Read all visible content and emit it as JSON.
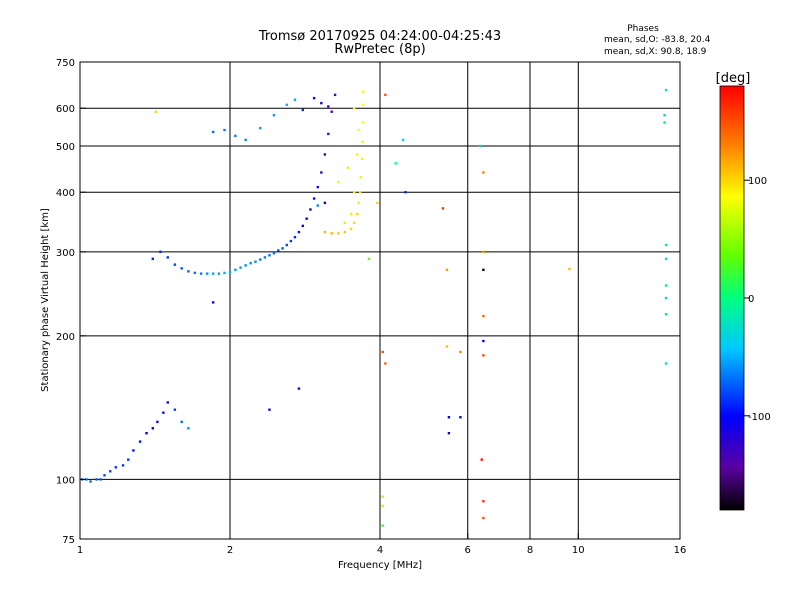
{
  "chart_data": {
    "type": "scatter",
    "title": "Tromsø 20170925 04:24:00-04:25:43",
    "subtitle": "RwPretec (8p)",
    "xlabel": "Frequency [MHz]",
    "ylabel": "Stationary phase Virtual Height [km]",
    "x_scale": "log",
    "y_scale": "log",
    "xlim": [
      1,
      16
    ],
    "ylim": [
      75,
      750
    ],
    "x_ticks": [
      1,
      2,
      4,
      6,
      8,
      10,
      16
    ],
    "x_tick_labels": [
      "1",
      "2",
      "4",
      "6",
      "8",
      "10",
      "16"
    ],
    "x_grid": [
      2,
      4,
      6,
      8,
      10
    ],
    "y_ticks": [
      75,
      100,
      200,
      300,
      400,
      500,
      600,
      750
    ],
    "y_tick_labels": [
      "75",
      "100",
      "200",
      "300",
      "400",
      "500",
      "600",
      "750"
    ],
    "y_grid": [
      100,
      200,
      300,
      400,
      500,
      600
    ],
    "grid": true,
    "legend": {
      "title": "Phases",
      "lines": [
        "mean, sd,O: -83.8, 20.4",
        "mean, sd,X:  90.8, 18.9"
      ]
    },
    "colorbar": {
      "label": "[deg]",
      "range": [
        -180,
        180
      ],
      "ticks": [
        100,
        0,
        -100
      ],
      "tick_labels": [
        "100",
        "0",
        "-100"
      ]
    },
    "series": [
      {
        "points": [
          [
            1.01,
            100,
            -70
          ],
          [
            1.03,
            100,
            -70
          ],
          [
            1.05,
            99,
            -70
          ],
          [
            1.08,
            100,
            -75
          ],
          [
            1.1,
            100,
            -75
          ],
          [
            1.12,
            102,
            -80
          ],
          [
            1.15,
            104,
            -80
          ],
          [
            1.18,
            106,
            -85
          ],
          [
            1.22,
            107,
            -85
          ],
          [
            1.25,
            110,
            -85
          ],
          [
            1.28,
            115,
            -95
          ],
          [
            1.32,
            120,
            -95
          ],
          [
            1.36,
            125,
            -100
          ],
          [
            1.4,
            128,
            -100
          ],
          [
            1.43,
            132,
            -105
          ],
          [
            1.47,
            138,
            -110
          ],
          [
            1.5,
            145,
            -115
          ],
          [
            1.55,
            140,
            -80
          ],
          [
            1.6,
            132,
            -70
          ],
          [
            1.65,
            128,
            -60
          ]
        ]
      },
      {
        "points": [
          [
            1.4,
            290,
            -90
          ],
          [
            1.45,
            300,
            -90
          ],
          [
            1.5,
            292,
            -85
          ],
          [
            1.55,
            282,
            -80
          ],
          [
            1.6,
            277,
            -75
          ],
          [
            1.65,
            273,
            -70
          ],
          [
            1.7,
            271,
            -70
          ],
          [
            1.75,
            270,
            -65
          ],
          [
            1.8,
            270,
            -60
          ],
          [
            1.85,
            270,
            -55
          ],
          [
            1.9,
            270,
            -55
          ],
          [
            1.95,
            271,
            -50
          ],
          [
            2.0,
            272,
            -50
          ],
          [
            2.05,
            275,
            -55
          ],
          [
            2.1,
            278,
            -55
          ],
          [
            2.15,
            281,
            -60
          ],
          [
            2.2,
            284,
            -60
          ],
          [
            2.25,
            286,
            -60
          ],
          [
            2.3,
            289,
            -65
          ],
          [
            2.35,
            292,
            -65
          ],
          [
            2.4,
            295,
            -70
          ],
          [
            2.45,
            298,
            -70
          ],
          [
            2.5,
            302,
            -75
          ],
          [
            2.55,
            305,
            -75
          ],
          [
            2.6,
            310,
            -80
          ],
          [
            2.65,
            316,
            -85
          ],
          [
            2.7,
            322,
            -90
          ],
          [
            2.75,
            330,
            -95
          ],
          [
            2.8,
            340,
            -100
          ],
          [
            2.85,
            352,
            -105
          ],
          [
            2.9,
            368,
            -110
          ],
          [
            2.95,
            388,
            -115
          ],
          [
            3.0,
            410,
            -120
          ],
          [
            3.05,
            440,
            -125
          ],
          [
            3.1,
            480,
            -130
          ],
          [
            3.15,
            530,
            -135
          ],
          [
            3.2,
            590,
            -140
          ],
          [
            3.25,
            640,
            -140
          ],
          [
            1.85,
            535,
            -70
          ],
          [
            1.95,
            540,
            -65
          ],
          [
            2.05,
            525,
            -65
          ],
          [
            2.15,
            515,
            -60
          ],
          [
            2.3,
            545,
            -55
          ],
          [
            2.45,
            580,
            -55
          ],
          [
            2.6,
            610,
            -50
          ],
          [
            2.7,
            625,
            -50
          ],
          [
            2.8,
            595,
            -90
          ],
          [
            2.95,
            630,
            -110
          ],
          [
            3.05,
            615,
            -120
          ],
          [
            3.15,
            605,
            -130
          ]
        ]
      },
      {
        "points": [
          [
            3.1,
            330,
            110
          ],
          [
            3.2,
            328,
            110
          ],
          [
            3.3,
            328,
            105
          ],
          [
            3.4,
            330,
            105
          ],
          [
            3.5,
            335,
            100
          ],
          [
            3.55,
            345,
            100
          ],
          [
            3.6,
            360,
            100
          ],
          [
            3.62,
            380,
            95
          ],
          [
            3.65,
            400,
            95
          ],
          [
            3.66,
            430,
            90
          ],
          [
            3.68,
            470,
            90
          ],
          [
            3.69,
            510,
            90
          ],
          [
            3.7,
            560,
            85
          ],
          [
            3.7,
            610,
            85
          ],
          [
            3.7,
            650,
            80
          ],
          [
            3.4,
            345,
            95
          ],
          [
            3.5,
            360,
            95
          ],
          [
            3.55,
            400,
            90
          ],
          [
            3.6,
            480,
            90
          ],
          [
            3.62,
            540,
            88
          ],
          [
            3.3,
            420,
            90
          ],
          [
            3.45,
            450,
            95
          ],
          [
            3.55,
            600,
            85
          ]
        ]
      },
      {
        "points": [
          [
            1.42,
            590,
            100
          ],
          [
            1.85,
            235,
            -110
          ],
          [
            2.4,
            140,
            -120
          ],
          [
            2.75,
            155,
            -110
          ],
          [
            3.1,
            380,
            -110
          ],
          [
            3.0,
            375,
            -60
          ],
          [
            3.8,
            290,
            40
          ],
          [
            3.95,
            380,
            100
          ],
          [
            4.1,
            640,
            150
          ],
          [
            4.3,
            460,
            0
          ],
          [
            4.45,
            515,
            -30
          ],
          [
            4.5,
            400,
            -90
          ],
          [
            4.05,
            185,
            150
          ],
          [
            4.1,
            175,
            140
          ],
          [
            4.05,
            92,
            60
          ],
          [
            4.05,
            88,
            60
          ],
          [
            4.05,
            80,
            20
          ],
          [
            5.35,
            370,
            160
          ],
          [
            5.45,
            275,
            120
          ],
          [
            5.45,
            190,
            110
          ],
          [
            5.8,
            185,
            130
          ],
          [
            5.5,
            135,
            -100
          ],
          [
            5.5,
            125,
            -110
          ],
          [
            5.8,
            135,
            -100
          ],
          [
            6.35,
            500,
            -20
          ],
          [
            6.45,
            440,
            130
          ],
          [
            6.45,
            300,
            120
          ],
          [
            6.45,
            275,
            -180
          ],
          [
            6.45,
            220,
            140
          ],
          [
            6.45,
            195,
            -100
          ],
          [
            6.45,
            182,
            150
          ],
          [
            6.4,
            110,
            170
          ],
          [
            6.45,
            90,
            160
          ],
          [
            6.45,
            83,
            150
          ],
          [
            9.6,
            276,
            110
          ],
          [
            15.0,
            655,
            -20
          ],
          [
            14.9,
            580,
            -30
          ],
          [
            14.9,
            560,
            -20
          ],
          [
            15.0,
            310,
            -10
          ],
          [
            15.0,
            290,
            -20
          ],
          [
            15.0,
            255,
            -10
          ],
          [
            15.0,
            240,
            -30
          ],
          [
            15.0,
            222,
            -20
          ],
          [
            15.0,
            175,
            -20
          ]
        ]
      }
    ]
  }
}
